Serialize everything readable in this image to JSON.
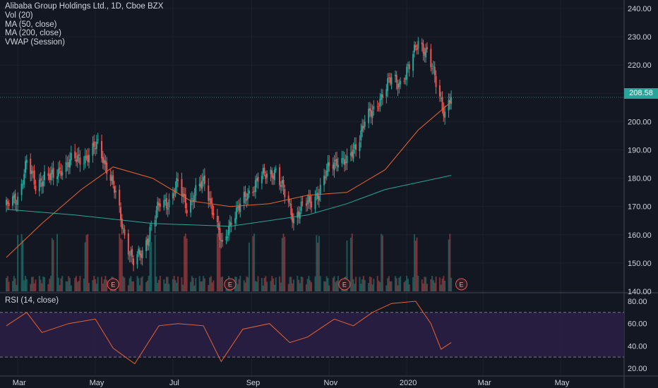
{
  "legend": {
    "symbol": "Alibaba Group Holdings Ltd., 1D, Cboe BZX",
    "vol": "Vol (20)",
    "ma50": "MA (50, close)",
    "ma200": "MA (200, close)",
    "vwap": "VWAP (Session)"
  },
  "rsi_legend": "RSI (14, close)",
  "last_price": "208.58",
  "earnings_marker": "E",
  "colors": {
    "background": "#131722",
    "up": "#26a69a",
    "down": "#ef5350",
    "ma50": "#e8632d",
    "ma200": "#26a69a",
    "rsi": "#e8632d",
    "rsi_band": "#2a1f45",
    "grid": "#1e222d"
  },
  "chart_data": {
    "type": "candlestick",
    "symbol": "Alibaba Group Holdings Ltd.",
    "interval": "1D",
    "exchange": "Cboe BZX",
    "price_axis": {
      "ticks": [
        "240.00",
        "230.00",
        "220.00",
        "210.00",
        "200.00",
        "190.00",
        "180.00",
        "170.00",
        "160.00",
        "150.00",
        "140.00"
      ],
      "range": [
        140,
        240
      ]
    },
    "rsi_axis": {
      "ticks": [
        "80.00",
        "60.00",
        "40.00",
        "20.00"
      ],
      "range": [
        20,
        80
      ],
      "band": [
        30,
        70
      ]
    },
    "time_axis": {
      "labels": [
        "Mar",
        "May",
        "Jul",
        "Sep",
        "Nov",
        "2020",
        "Mar",
        "May"
      ]
    },
    "earnings_dates": [
      "2019-05-15",
      "2019-08-15",
      "2019-11-13",
      "2020-02-13"
    ],
    "close_series": [
      {
        "date": "2019-02-20",
        "close": 170
      },
      {
        "date": "2019-03-01",
        "close": 173
      },
      {
        "date": "2019-03-08",
        "close": 186
      },
      {
        "date": "2019-03-15",
        "close": 177
      },
      {
        "date": "2019-03-22",
        "close": 181
      },
      {
        "date": "2019-03-29",
        "close": 180
      },
      {
        "date": "2019-04-05",
        "close": 184
      },
      {
        "date": "2019-04-12",
        "close": 186
      },
      {
        "date": "2019-04-19",
        "close": 187
      },
      {
        "date": "2019-04-26",
        "close": 188
      },
      {
        "date": "2019-05-03",
        "close": 192
      },
      {
        "date": "2019-05-10",
        "close": 184
      },
      {
        "date": "2019-05-17",
        "close": 174
      },
      {
        "date": "2019-05-24",
        "close": 160
      },
      {
        "date": "2019-05-31",
        "close": 150
      },
      {
        "date": "2019-06-07",
        "close": 154
      },
      {
        "date": "2019-06-14",
        "close": 163
      },
      {
        "date": "2019-06-21",
        "close": 171
      },
      {
        "date": "2019-06-28",
        "close": 172
      },
      {
        "date": "2019-07-05",
        "close": 178
      },
      {
        "date": "2019-07-12",
        "close": 170
      },
      {
        "date": "2019-07-19",
        "close": 175
      },
      {
        "date": "2019-07-26",
        "close": 179
      },
      {
        "date": "2019-08-02",
        "close": 168
      },
      {
        "date": "2019-08-09",
        "close": 155
      },
      {
        "date": "2019-08-16",
        "close": 166
      },
      {
        "date": "2019-08-23",
        "close": 170
      },
      {
        "date": "2019-08-30",
        "close": 175
      },
      {
        "date": "2019-09-06",
        "close": 180
      },
      {
        "date": "2019-09-13",
        "close": 181
      },
      {
        "date": "2019-09-20",
        "close": 183
      },
      {
        "date": "2019-09-27",
        "close": 174
      },
      {
        "date": "2019-10-04",
        "close": 166
      },
      {
        "date": "2019-10-11",
        "close": 170
      },
      {
        "date": "2019-10-18",
        "close": 172
      },
      {
        "date": "2019-10-25",
        "close": 176
      },
      {
        "date": "2019-11-01",
        "close": 184
      },
      {
        "date": "2019-11-08",
        "close": 187
      },
      {
        "date": "2019-11-15",
        "close": 185
      },
      {
        "date": "2019-11-22",
        "close": 192
      },
      {
        "date": "2019-11-29",
        "close": 200
      },
      {
        "date": "2019-12-06",
        "close": 204
      },
      {
        "date": "2019-12-13",
        "close": 210
      },
      {
        "date": "2019-12-20",
        "close": 215
      },
      {
        "date": "2019-12-27",
        "close": 214
      },
      {
        "date": "2020-01-03",
        "close": 219
      },
      {
        "date": "2020-01-10",
        "close": 229
      },
      {
        "date": "2020-01-17",
        "close": 224
      },
      {
        "date": "2020-01-24",
        "close": 214
      },
      {
        "date": "2020-01-31",
        "close": 203
      },
      {
        "date": "2020-02-05",
        "close": 208.58
      }
    ],
    "ma50": [
      {
        "date": "2019-02-20",
        "value": 152
      },
      {
        "date": "2019-03-20",
        "value": 164
      },
      {
        "date": "2019-04-20",
        "value": 176
      },
      {
        "date": "2019-05-15",
        "value": 184
      },
      {
        "date": "2019-06-15",
        "value": 180
      },
      {
        "date": "2019-07-15",
        "value": 172
      },
      {
        "date": "2019-08-15",
        "value": 170
      },
      {
        "date": "2019-09-15",
        "value": 171
      },
      {
        "date": "2019-10-15",
        "value": 174
      },
      {
        "date": "2019-11-15",
        "value": 175
      },
      {
        "date": "2019-12-15",
        "value": 183
      },
      {
        "date": "2020-01-10",
        "value": 197
      },
      {
        "date": "2020-02-05",
        "value": 207
      }
    ],
    "ma200": [
      {
        "date": "2019-02-20",
        "value": 169
      },
      {
        "date": "2019-04-15",
        "value": 167
      },
      {
        "date": "2019-06-15",
        "value": 164
      },
      {
        "date": "2019-08-15",
        "value": 163
      },
      {
        "date": "2019-10-15",
        "value": 167
      },
      {
        "date": "2019-11-15",
        "value": 171
      },
      {
        "date": "2019-12-15",
        "value": 176
      },
      {
        "date": "2020-02-05",
        "value": 181
      }
    ],
    "rsi": [
      {
        "date": "2019-02-20",
        "value": 58
      },
      {
        "date": "2019-03-08",
        "value": 70
      },
      {
        "date": "2019-03-20",
        "value": 52
      },
      {
        "date": "2019-04-10",
        "value": 60
      },
      {
        "date": "2019-05-01",
        "value": 64
      },
      {
        "date": "2019-05-15",
        "value": 38
      },
      {
        "date": "2019-06-01",
        "value": 24
      },
      {
        "date": "2019-06-20",
        "value": 58
      },
      {
        "date": "2019-07-05",
        "value": 60
      },
      {
        "date": "2019-07-25",
        "value": 58
      },
      {
        "date": "2019-08-08",
        "value": 26
      },
      {
        "date": "2019-08-25",
        "value": 55
      },
      {
        "date": "2019-09-15",
        "value": 60
      },
      {
        "date": "2019-10-01",
        "value": 43
      },
      {
        "date": "2019-10-15",
        "value": 48
      },
      {
        "date": "2019-11-05",
        "value": 64
      },
      {
        "date": "2019-11-20",
        "value": 58
      },
      {
        "date": "2019-12-05",
        "value": 70
      },
      {
        "date": "2019-12-20",
        "value": 78
      },
      {
        "date": "2020-01-08",
        "value": 80
      },
      {
        "date": "2020-01-20",
        "value": 60
      },
      {
        "date": "2020-01-28",
        "value": 37
      },
      {
        "date": "2020-02-05",
        "value": 43
      }
    ],
    "x_range": [
      "2019-02-15",
      "2020-06-20"
    ]
  }
}
